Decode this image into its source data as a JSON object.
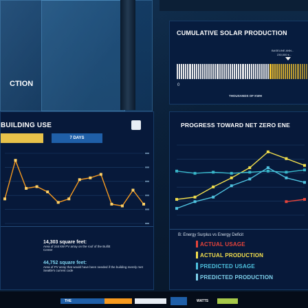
{
  "solar": {
    "title": "CUMULATIVE SOLAR PRODUCTION",
    "baseline_label": "BASELINE ANN...",
    "baseline_value": "230,000 k...",
    "zero_label": "0",
    "axis_label": "THOUSANDS OF KWH",
    "colors": {
      "bar_on": "#f2f2f2",
      "bar_tail": "#f4c430"
    }
  },
  "side_text": {
    "fragment": "CTION"
  },
  "building": {
    "title": "BUILDING USE",
    "tab_days": "7 DAYS",
    "colors": {
      "line": "#f79a1f",
      "point": "#ffd166",
      "tab_active": "#e8c24a",
      "tab": "#1f5fa8"
    },
    "chart_data": {
      "type": "line",
      "series": [
        {
          "values": [
            220,
            330,
            250,
            255,
            240,
            210,
            220,
            275,
            280,
            290,
            205,
            200,
            245,
            205
          ]
        }
      ]
    },
    "stats": [
      {
        "value": "14,303 square feet:",
        "desc": "Area of 244 kW PV array on the roof of the Bullitt Center"
      },
      {
        "value": "44,752 square feet:",
        "desc": "Area of PV array that would have been needed if the building merely met Seattle's current code"
      }
    ]
  },
  "netzero": {
    "title": "PROGRESS TOWARD NET ZERO ENE",
    "chart_data": {
      "type": "line",
      "series": [
        {
          "color": "#f4e04d",
          "values": [
            120,
            130,
            175,
            215,
            260,
            330,
            300,
            270
          ]
        },
        {
          "color": "#38b6c9",
          "values": [
            245,
            235,
            240,
            235,
            240,
            245,
            240,
            250
          ]
        },
        {
          "color": "#4fc3e0",
          "values": [
            80,
            110,
            130,
            180,
            210,
            260,
            215,
            195
          ]
        },
        {
          "color": "#e8443a",
          "values": [
            null,
            null,
            null,
            null,
            null,
            null,
            110,
            120
          ]
        }
      ]
    },
    "legend_title": "B: Energy Surplus vs Energy Deficit",
    "legend": [
      {
        "label": "ACTUAL USAGE",
        "color": "#e8443a"
      },
      {
        "label": "ACTUAL PRODUCTION",
        "color": "#f4e04d"
      },
      {
        "label": "PREDICTED USAGE",
        "color": "#4fc3e0"
      },
      {
        "label": "PREDICTED PRODUCTION",
        "color": "#7fd3ee"
      }
    ]
  },
  "bottom": {
    "label_a": "THE",
    "label_b": "WATTS"
  }
}
